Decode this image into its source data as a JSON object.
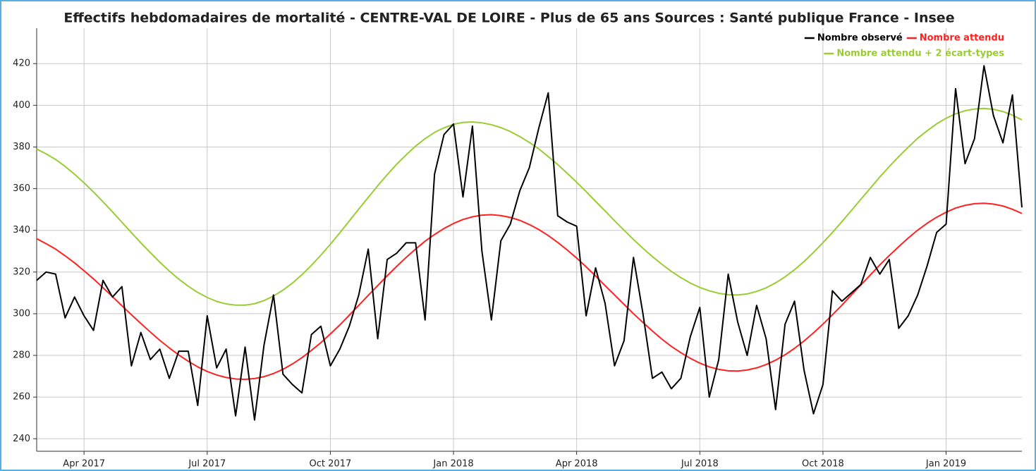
{
  "chart_data": {
    "type": "line",
    "title": "Effectifs hebdomadaires de mortalité - CENTRE-VAL DE LOIRE - Plus de 65 ans Sources : Santé publique France - Insee",
    "categories": [
      null,
      null,
      null,
      null,
      null,
      "Apr 2017",
      null,
      null,
      null,
      null,
      null,
      null,
      null,
      null,
      null,
      null,
      null,
      null,
      "Jul 2017",
      null,
      null,
      null,
      null,
      null,
      null,
      null,
      null,
      null,
      null,
      null,
      null,
      "Oct 2017",
      null,
      null,
      null,
      null,
      null,
      null,
      null,
      null,
      null,
      null,
      null,
      null,
      "Jan 2018",
      null,
      null,
      null,
      null,
      null,
      null,
      null,
      null,
      null,
      null,
      null,
      null,
      "Apr 2018",
      null,
      null,
      null,
      null,
      null,
      null,
      null,
      null,
      null,
      null,
      null,
      null,
      "Jul 2018",
      null,
      null,
      null,
      null,
      null,
      null,
      null,
      null,
      null,
      null,
      null,
      null,
      "Oct 2018",
      null,
      null,
      null,
      null,
      null,
      null,
      null,
      null,
      null,
      null,
      null,
      null,
      "Jan 2019",
      null,
      null,
      null,
      null,
      null,
      null,
      null,
      null
    ],
    "series": [
      {
        "name": "Nombre observé",
        "color": "#000000",
        "values": [
          316,
          320,
          319,
          298,
          308,
          299,
          292,
          316,
          308,
          313,
          275,
          291,
          278,
          283,
          269,
          282,
          282,
          256,
          299,
          274,
          283,
          251,
          284,
          249,
          285,
          309,
          271,
          266,
          262,
          290,
          294,
          275,
          283,
          294,
          309,
          331,
          288,
          326,
          329,
          334,
          334,
          297,
          367,
          386,
          391,
          356,
          390,
          330,
          297,
          335,
          343,
          359,
          370,
          389,
          406,
          347,
          344,
          342,
          299,
          322,
          305,
          275,
          287,
          327,
          300,
          269,
          272,
          264,
          269,
          289,
          303,
          260,
          278,
          319,
          296,
          280,
          304,
          288,
          254,
          295,
          306,
          273,
          252,
          266,
          311,
          306,
          310,
          314,
          327,
          319,
          326,
          293,
          299,
          309,
          323,
          339,
          343,
          408,
          372,
          384,
          419,
          395,
          382,
          405,
          351
        ]
      },
      {
        "name": "Nombre attendu",
        "color": "#ff2020",
        "values": [
          336.0,
          333.6,
          331.0,
          327.8,
          324.4,
          320.6,
          316.7,
          312.5,
          308.2,
          303.8,
          299.5,
          295.3,
          291.2,
          287.2,
          283.6,
          280.2,
          277.2,
          274.5,
          272.3,
          270.6,
          269.4,
          268.7,
          268.5,
          268.9,
          269.8,
          271.3,
          273.3,
          275.9,
          278.9,
          282.4,
          286.1,
          290.3,
          294.6,
          299.3,
          304.0,
          308.8,
          313.5,
          318.2,
          322.7,
          327.0,
          331.0,
          334.8,
          338.0,
          340.9,
          343.3,
          345.2,
          346.5,
          347.3,
          347.5,
          347.1,
          346.2,
          344.8,
          342.8,
          340.4,
          337.5,
          334.2,
          330.6,
          326.7,
          322.5,
          318.1,
          313.5,
          309.0,
          304.5,
          300.0,
          295.8,
          291.7,
          287.8,
          284.3,
          281.3,
          278.6,
          276.3,
          274.5,
          273.3,
          272.6,
          272.5,
          273.0,
          274.0,
          275.6,
          277.7,
          280.3,
          283.4,
          286.9,
          290.8,
          295.0,
          299.5,
          304.1,
          309.0,
          313.8,
          318.6,
          323.4,
          327.9,
          332.2,
          336.3,
          340.1,
          343.4,
          346.3,
          348.7,
          350.7,
          352.0,
          352.8,
          353.0,
          352.6,
          351.7,
          350.1,
          348.1
        ]
      },
      {
        "name": "Nombre attendu + 2 écart-types",
        "color": "#99cc33",
        "values": [
          379.0,
          376.7,
          374.0,
          370.7,
          366.9,
          362.8,
          358.4,
          353.7,
          348.9,
          343.9,
          338.9,
          334.0,
          329.3,
          324.7,
          320.5,
          316.6,
          313.2,
          310.2,
          307.8,
          305.9,
          304.7,
          304.1,
          304.1,
          304.8,
          306.3,
          308.5,
          311.3,
          314.7,
          318.7,
          323.2,
          328.1,
          333.3,
          338.8,
          344.5,
          350.2,
          355.8,
          361.4,
          366.7,
          371.7,
          376.2,
          380.4,
          384.0,
          387.0,
          389.2,
          390.9,
          391.8,
          392.0,
          391.6,
          390.7,
          389.3,
          387.4,
          385.0,
          382.2,
          379.1,
          375.4,
          371.6,
          367.4,
          363.1,
          358.6,
          353.9,
          349.3,
          344.6,
          340.1,
          335.6,
          331.4,
          327.4,
          323.7,
          320.3,
          317.3,
          314.7,
          312.6,
          311.0,
          309.8,
          309.1,
          309.0,
          309.5,
          310.7,
          312.4,
          314.8,
          317.7,
          321.1,
          325.0,
          329.4,
          334.1,
          339.0,
          344.2,
          349.5,
          354.9,
          360.2,
          365.6,
          370.6,
          375.4,
          379.9,
          384.2,
          387.8,
          391.1,
          393.8,
          395.9,
          397.4,
          398.2,
          398.5,
          398.1,
          397.0,
          395.3,
          393.0
        ]
      }
    ],
    "ylim": [
      234,
      437
    ],
    "yticks": [
      240,
      260,
      280,
      300,
      320,
      340,
      360,
      380,
      400,
      420
    ],
    "grid": true,
    "legend": "top-right"
  }
}
